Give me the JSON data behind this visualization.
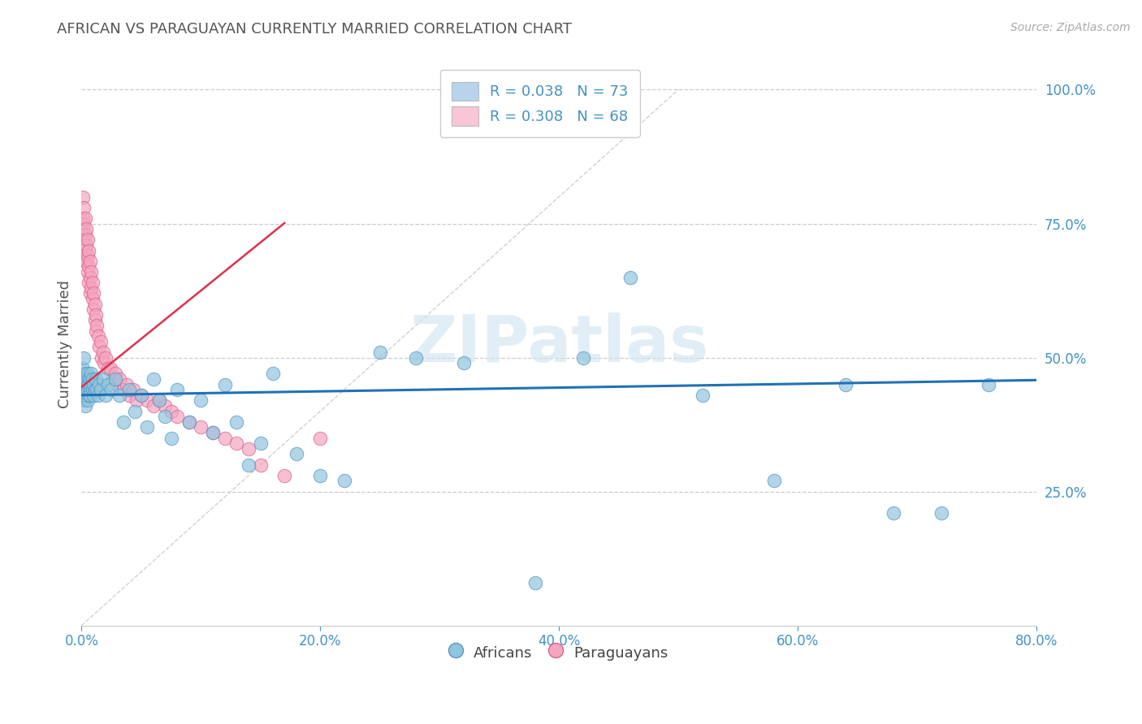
{
  "title": "AFRICAN VS PARAGUAYAN CURRENTLY MARRIED CORRELATION CHART",
  "source_text": "Source: ZipAtlas.com",
  "ylabel": "Currently Married",
  "xlim": [
    0.0,
    0.8
  ],
  "ylim": [
    0.0,
    1.05
  ],
  "xtick_labels": [
    "0.0%",
    "20.0%",
    "40.0%",
    "60.0%",
    "80.0%"
  ],
  "xtick_vals": [
    0.0,
    0.2,
    0.4,
    0.6,
    0.8
  ],
  "ytick_labels": [
    "25.0%",
    "50.0%",
    "75.0%",
    "100.0%"
  ],
  "ytick_vals": [
    0.25,
    0.5,
    0.75,
    1.0
  ],
  "african_color": "#92c5de",
  "paraguayan_color": "#f4a6c0",
  "african_edge": "#5599c8",
  "paraguayan_edge": "#e06090",
  "trendline_african_color": "#2171b5",
  "trendline_paraguayan_color": "#e0304a",
  "diagonal_color": "#cccccc",
  "R_african": 0.038,
  "N_african": 73,
  "R_paraguayan": 0.308,
  "N_paraguayan": 68,
  "legend_box_african": "#b8d4ea",
  "legend_box_paraguayan": "#f9c6d8",
  "title_color": "#555555",
  "axis_label_color": "#555555",
  "tick_color": "#4393c3",
  "watermark": "ZIPatlas",
  "african_x": [
    0.001,
    0.001,
    0.002,
    0.002,
    0.002,
    0.003,
    0.003,
    0.003,
    0.003,
    0.004,
    0.004,
    0.004,
    0.005,
    0.005,
    0.005,
    0.005,
    0.006,
    0.006,
    0.006,
    0.007,
    0.007,
    0.007,
    0.008,
    0.008,
    0.009,
    0.009,
    0.01,
    0.01,
    0.011,
    0.012,
    0.013,
    0.014,
    0.015,
    0.016,
    0.018,
    0.02,
    0.022,
    0.025,
    0.028,
    0.032,
    0.035,
    0.04,
    0.045,
    0.05,
    0.055,
    0.06,
    0.065,
    0.07,
    0.075,
    0.08,
    0.09,
    0.1,
    0.11,
    0.12,
    0.13,
    0.14,
    0.15,
    0.16,
    0.18,
    0.2,
    0.22,
    0.25,
    0.28,
    0.32,
    0.38,
    0.42,
    0.46,
    0.52,
    0.58,
    0.64,
    0.68,
    0.72,
    0.76
  ],
  "african_y": [
    0.48,
    0.44,
    0.46,
    0.42,
    0.5,
    0.45,
    0.43,
    0.47,
    0.41,
    0.44,
    0.46,
    0.43,
    0.45,
    0.47,
    0.42,
    0.44,
    0.46,
    0.43,
    0.45,
    0.44,
    0.46,
    0.43,
    0.45,
    0.47,
    0.44,
    0.46,
    0.43,
    0.45,
    0.44,
    0.46,
    0.44,
    0.43,
    0.45,
    0.44,
    0.46,
    0.43,
    0.45,
    0.44,
    0.46,
    0.43,
    0.38,
    0.44,
    0.4,
    0.43,
    0.37,
    0.46,
    0.42,
    0.39,
    0.35,
    0.44,
    0.38,
    0.42,
    0.36,
    0.45,
    0.38,
    0.3,
    0.34,
    0.47,
    0.32,
    0.28,
    0.27,
    0.51,
    0.5,
    0.49,
    0.08,
    0.5,
    0.65,
    0.43,
    0.27,
    0.45,
    0.21,
    0.21,
    0.45
  ],
  "paraguayan_x": [
    0.001,
    0.001,
    0.001,
    0.002,
    0.002,
    0.002,
    0.002,
    0.003,
    0.003,
    0.003,
    0.003,
    0.004,
    0.004,
    0.004,
    0.005,
    0.005,
    0.005,
    0.006,
    0.006,
    0.006,
    0.007,
    0.007,
    0.007,
    0.008,
    0.008,
    0.009,
    0.009,
    0.01,
    0.01,
    0.011,
    0.011,
    0.012,
    0.012,
    0.013,
    0.014,
    0.015,
    0.016,
    0.017,
    0.018,
    0.019,
    0.02,
    0.022,
    0.024,
    0.026,
    0.028,
    0.03,
    0.032,
    0.035,
    0.038,
    0.04,
    0.043,
    0.046,
    0.05,
    0.055,
    0.06,
    0.065,
    0.07,
    0.075,
    0.08,
    0.09,
    0.1,
    0.11,
    0.12,
    0.13,
    0.14,
    0.15,
    0.17,
    0.2
  ],
  "paraguayan_y": [
    0.8,
    0.76,
    0.74,
    0.78,
    0.75,
    0.72,
    0.7,
    0.76,
    0.73,
    0.7,
    0.68,
    0.74,
    0.71,
    0.68,
    0.72,
    0.69,
    0.66,
    0.7,
    0.67,
    0.64,
    0.68,
    0.65,
    0.62,
    0.66,
    0.63,
    0.64,
    0.61,
    0.62,
    0.59,
    0.6,
    0.57,
    0.58,
    0.55,
    0.56,
    0.54,
    0.52,
    0.53,
    0.5,
    0.51,
    0.49,
    0.5,
    0.48,
    0.48,
    0.46,
    0.47,
    0.45,
    0.46,
    0.44,
    0.45,
    0.43,
    0.44,
    0.42,
    0.43,
    0.42,
    0.41,
    0.42,
    0.41,
    0.4,
    0.39,
    0.38,
    0.37,
    0.36,
    0.35,
    0.34,
    0.33,
    0.3,
    0.28,
    0.35
  ]
}
